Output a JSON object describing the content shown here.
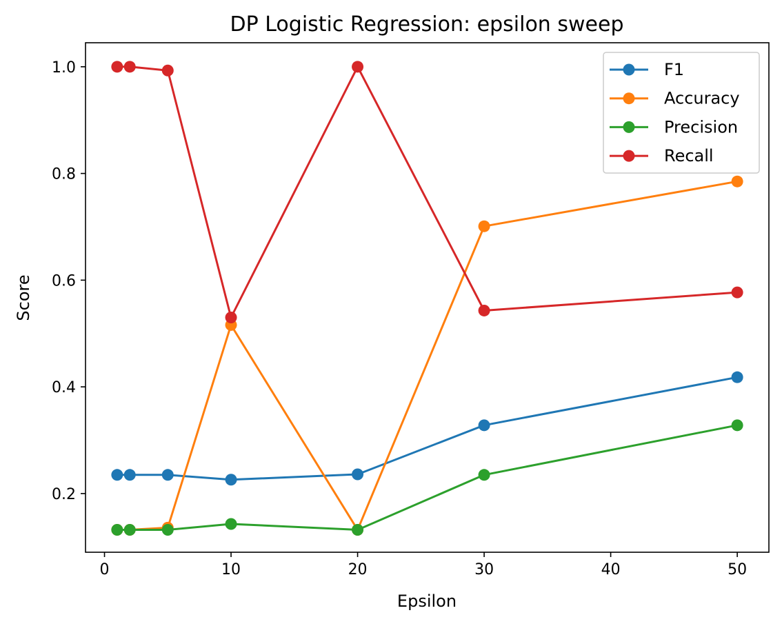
{
  "chart_data": {
    "type": "line",
    "title": "DP Logistic Regression: epsilon sweep",
    "xlabel": "Epsilon",
    "ylabel": "Score",
    "xlim": [
      -1.5,
      52.5
    ],
    "ylim": [
      0.09,
      1.045
    ],
    "xticks": [
      0,
      10,
      20,
      30,
      40,
      50
    ],
    "xtick_labels": [
      "0",
      "10",
      "20",
      "30",
      "40",
      "50"
    ],
    "yticks": [
      0.2,
      0.4,
      0.6,
      0.8,
      1.0
    ],
    "ytick_labels": [
      "0.2",
      "0.4",
      "0.6",
      "0.8",
      "1.0"
    ],
    "grid": false,
    "legend_position": "upper right",
    "x": [
      1,
      2,
      5,
      10,
      20,
      30,
      50
    ],
    "series": [
      {
        "name": "F1",
        "color": "#1f77b4",
        "marker": "circle",
        "values": [
          0.235,
          0.235,
          0.235,
          0.226,
          0.236,
          0.328,
          0.418
        ]
      },
      {
        "name": "Accuracy",
        "color": "#ff7f0e",
        "marker": "circle",
        "values": [
          0.132,
          0.132,
          0.136,
          0.516,
          0.132,
          0.701,
          0.785
        ]
      },
      {
        "name": "Precision",
        "color": "#2ca02c",
        "marker": "circle",
        "values": [
          0.132,
          0.132,
          0.132,
          0.143,
          0.132,
          0.235,
          0.328
        ]
      },
      {
        "name": "Recall",
        "color": "#d62728",
        "marker": "circle",
        "values": [
          1.0,
          1.0,
          0.993,
          0.53,
          1.0,
          0.543,
          0.577
        ]
      }
    ]
  }
}
